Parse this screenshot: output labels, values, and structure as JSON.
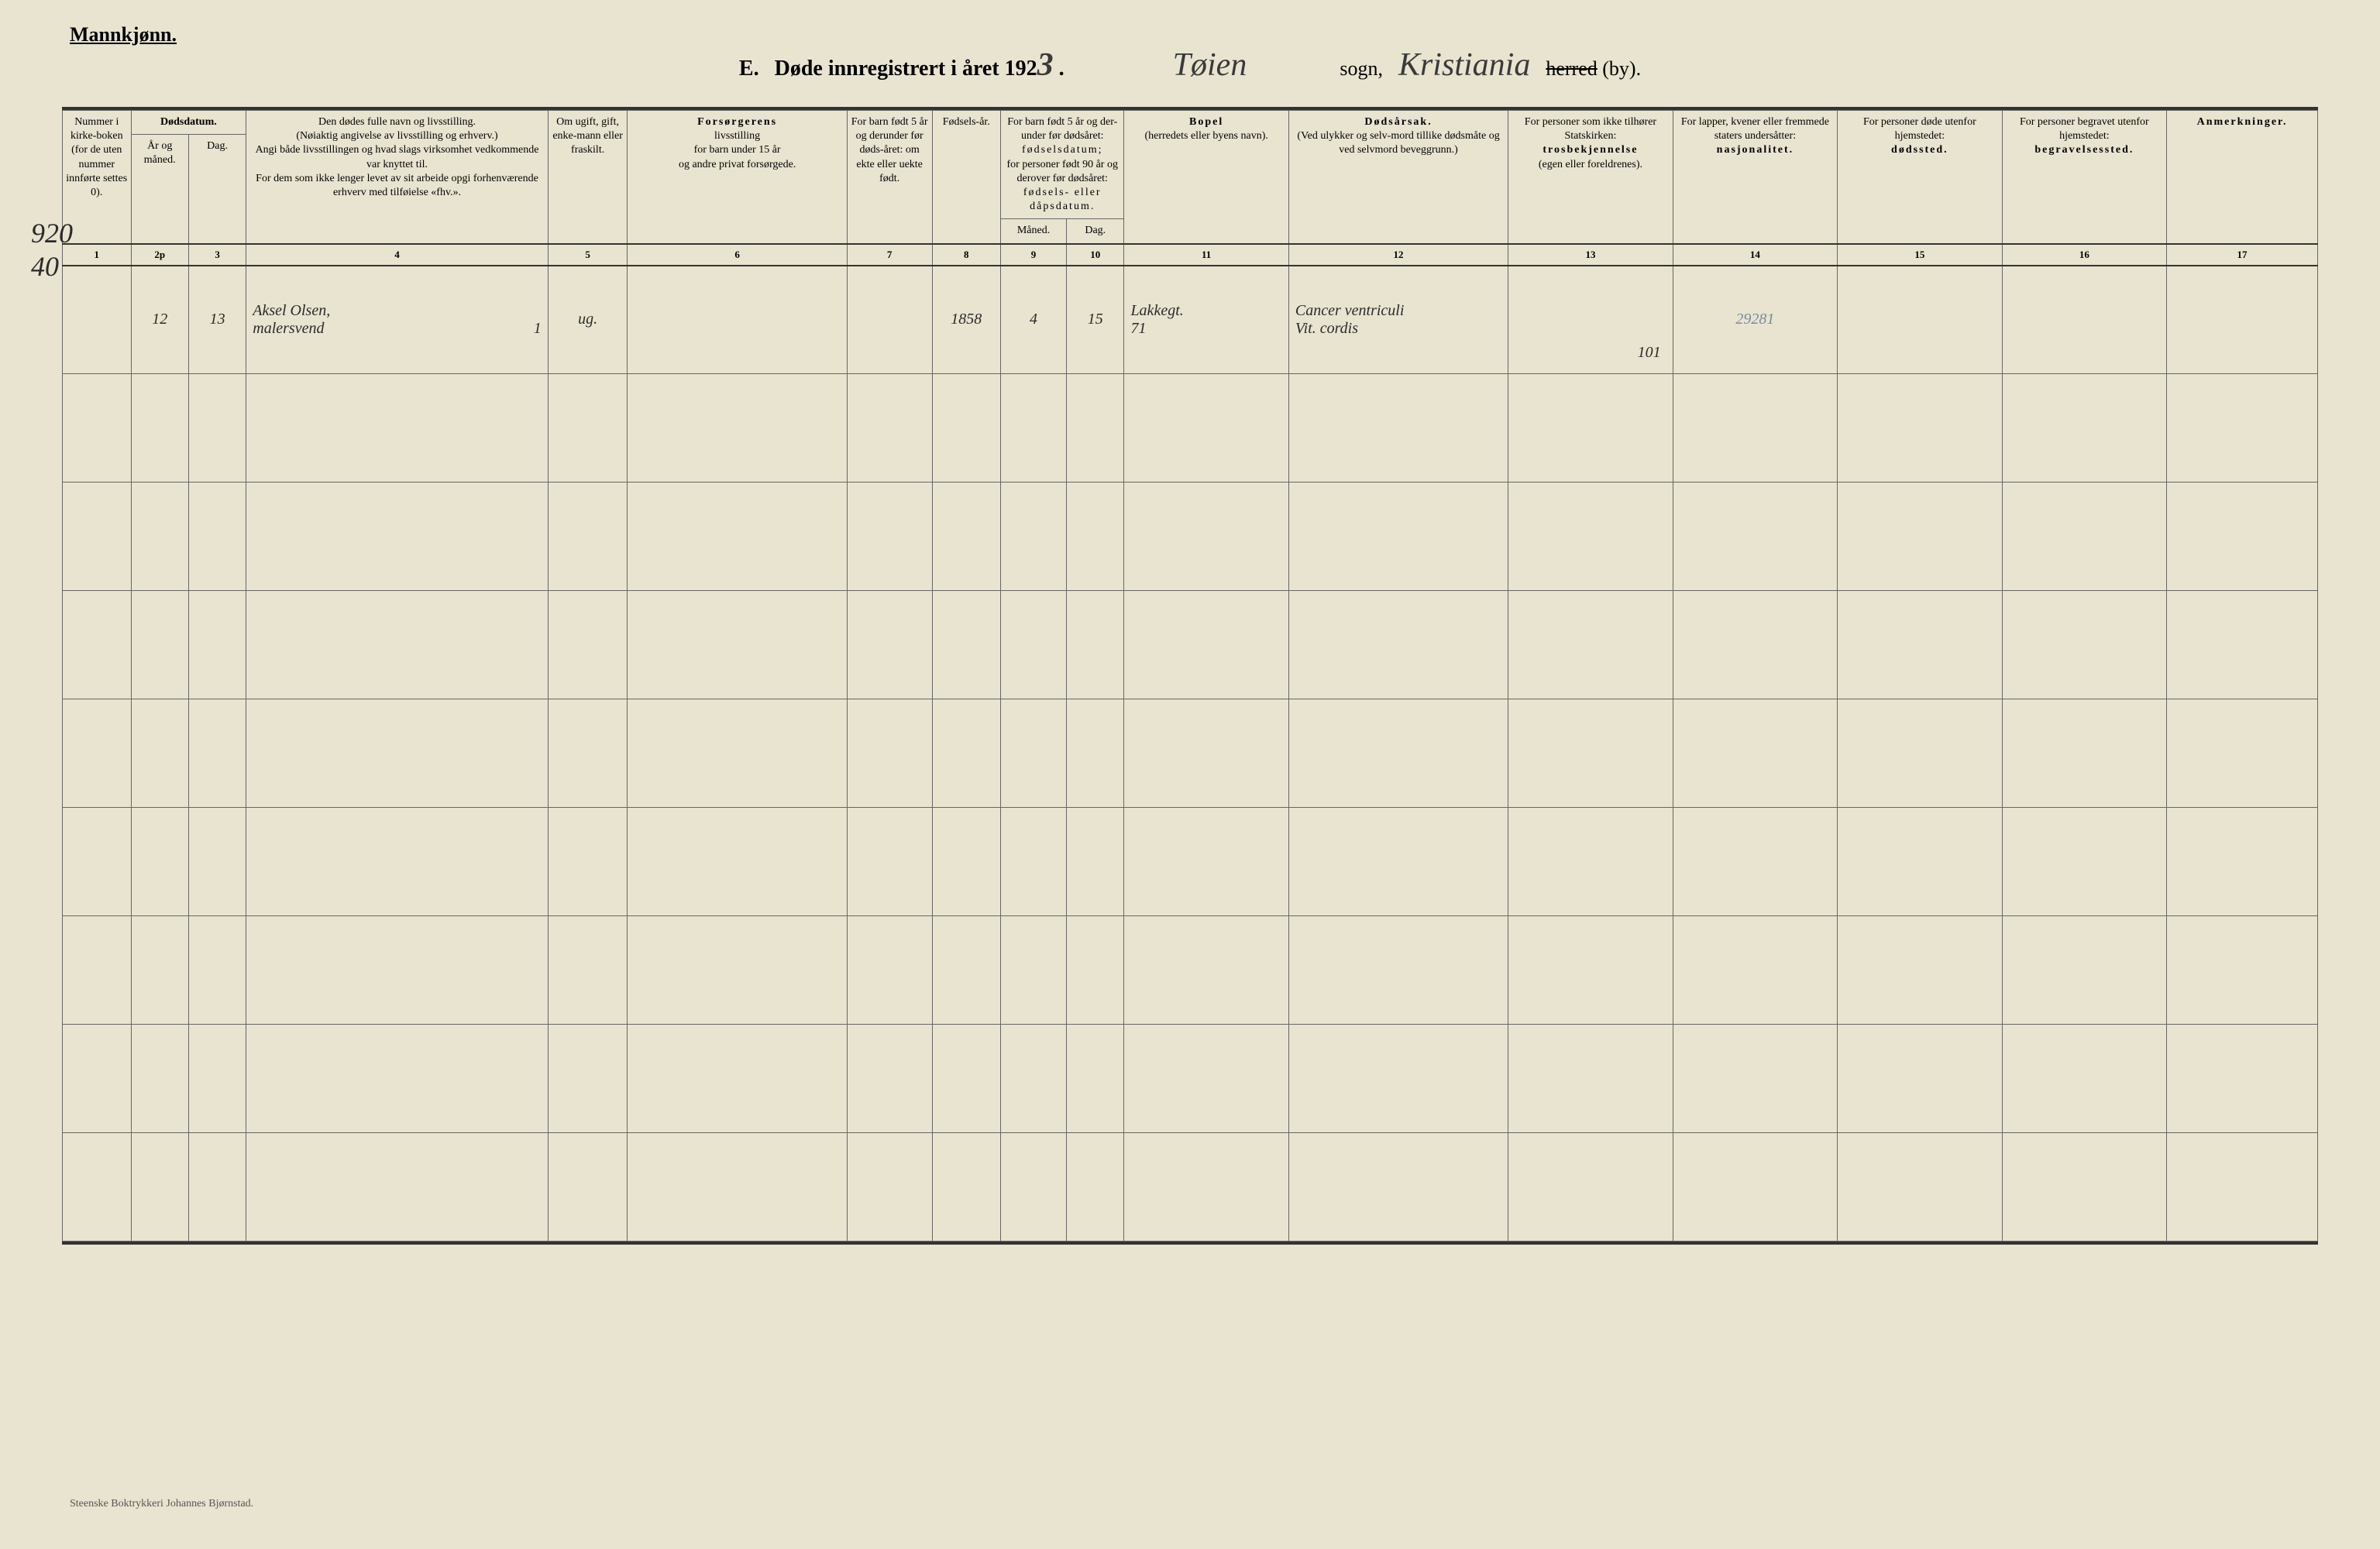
{
  "header": {
    "gender": "Mannkjønn.",
    "title_prefix": "E.",
    "title_main": "Døde innregistrert i året 192",
    "year_suffix": "3",
    "sogn_value": "Tøien",
    "sogn_label": "sogn,",
    "herred_value": "Kristiania",
    "herred_label_strike": "herred",
    "herred_label_by": "(by)."
  },
  "columns": {
    "col1": {
      "header": "Nummer i kirke-boken (for de uten nummer innførte settes 0).",
      "num": "1"
    },
    "col2": {
      "header_main": "Dødsdatum.",
      "sub1": "År og måned.",
      "sub2": "Dag.",
      "num1": "2p",
      "num2": "3"
    },
    "col4": {
      "header": "Den dødes fulle navn og livsstilling.\n(Nøiaktig angivelse av livsstilling og erhverv.)\nAngi både livsstillingen og hvad slags virksomhet vedkommende var knyttet til.\nFor dem som ikke lenger levet av sit arbeide opgi forhenværende erhverv med tilføielse «fhv.».",
      "num": "4"
    },
    "col5": {
      "header": "Om ugift, gift, enke-mann eller fraskilt.",
      "num": "5"
    },
    "col6": {
      "header_bold": "Forsørgerens",
      "header_rest": "livsstilling\nfor barn under 15 år\nog andre privat forsørgede.",
      "num": "6"
    },
    "col7": {
      "header": "For barn født 5 år og derunder før døds-året: om ekte eller uekte født.",
      "num": "7"
    },
    "col8": {
      "header": "Fødsels-år.",
      "num": "8"
    },
    "col9": {
      "header_top": "For barn født 5 år og der-under før dødsåret:",
      "header_mid": "fødselsdatum;",
      "header_bot": "for personer født 90 år og derover før dødsåret:",
      "header_last": "fødsels- eller dåpsdatum.",
      "sub1": "Måned.",
      "sub2": "Dag.",
      "num1": "9",
      "num2": "10"
    },
    "col11": {
      "header_bold": "Bopel",
      "header_rest": "(herredets eller byens navn).",
      "num": "11"
    },
    "col12": {
      "header_bold": "Dødsårsak.",
      "header_rest": "(Ved ulykker og selv-mord tillike dødsmåte og ved selvmord beveggrunn.)",
      "num": "12"
    },
    "col13": {
      "header": "For personer som ikke tilhører Statskirken:",
      "header_bold": "trosbekjennelse",
      "header_rest": "(egen eller foreldrenes).",
      "num": "13"
    },
    "col14": {
      "header": "For lapper, kvener eller fremmede staters undersåtter:",
      "header_bold": "nasjonalitet.",
      "num": "14"
    },
    "col15": {
      "header": "For personer døde utenfor hjemstedet:",
      "header_bold": "dødssted.",
      "num": "15"
    },
    "col16": {
      "header": "For personer begravet utenfor hjemstedet:",
      "header_bold": "begravelsessted.",
      "num": "16"
    },
    "col17": {
      "header_bold": "Anmerkninger.",
      "num": "17"
    }
  },
  "margin_note": "920\n40",
  "entry": {
    "ar_maned": "12",
    "dag": "13",
    "navn": "Aksel Olsen,\nmalersvend",
    "navn_suffix": "1",
    "sivilstand": "ug.",
    "fodselsaar": "1858",
    "fod_maned": "4",
    "fod_dag": "15",
    "bopel": "Lakkegt.\n71",
    "dodsarsak": "Cancer ventriculi\nVit. cordis",
    "trosbek": "101",
    "nasjonalitet": "29281"
  },
  "column_widths": {
    "col1": 50,
    "col2a": 42,
    "col2b": 42,
    "col4": 220,
    "col5": 58,
    "col6": 160,
    "col7": 62,
    "col8": 50,
    "col9a": 48,
    "col9b": 42,
    "col11": 120,
    "col12": 160,
    "col13": 120,
    "col14": 120,
    "col15": 120,
    "col16": 120,
    "col17": 110
  },
  "footer": "Steenske Boktrykkeri Johannes Bjørnstad.",
  "empty_rows": 8
}
